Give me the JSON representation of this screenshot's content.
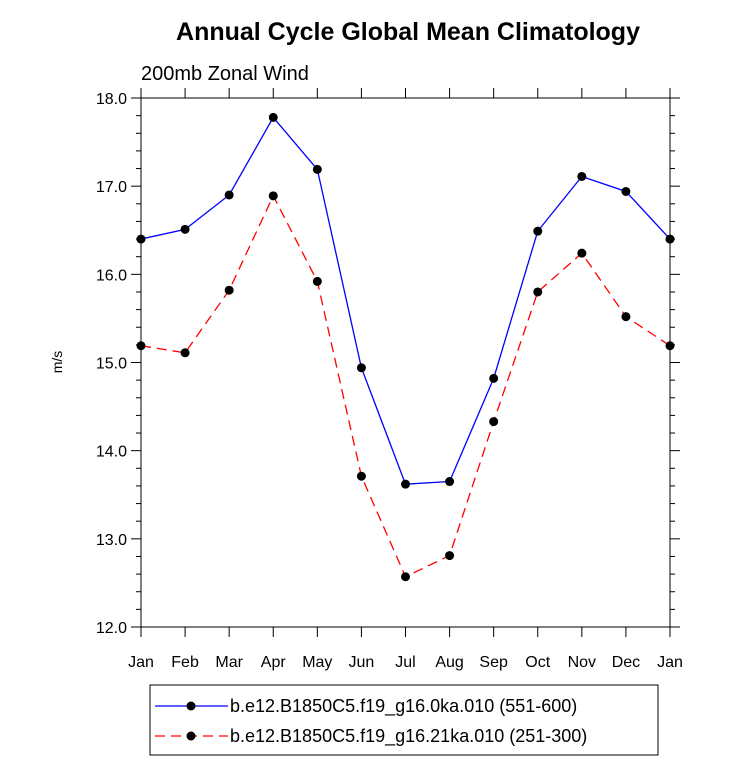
{
  "chart_data": {
    "type": "line",
    "title": "Annual Cycle Global Mean Climatology",
    "subtitle": "200mb Zonal Wind",
    "xlabel": "",
    "ylabel": "m/s",
    "categories": [
      "Jan",
      "Feb",
      "Mar",
      "Apr",
      "May",
      "Jun",
      "Jul",
      "Aug",
      "Sep",
      "Oct",
      "Nov",
      "Dec",
      "Jan"
    ],
    "ylim": [
      12.0,
      18.0
    ],
    "yticks": [
      "12.0",
      "13.0",
      "14.0",
      "15.0",
      "16.0",
      "17.0",
      "18.0"
    ],
    "series": [
      {
        "name": "b.e12.B1850C5.f19_g16.0ka.010 (551-600)",
        "color": "#0000ff",
        "dash": "solid",
        "values": [
          16.4,
          16.51,
          16.9,
          17.78,
          17.19,
          14.94,
          13.62,
          13.65,
          14.82,
          16.49,
          17.11,
          16.94,
          16.4
        ]
      },
      {
        "name": "b.e12.B1850C5.f19_g16.21ka.010 (251-300)",
        "color": "#ff0000",
        "dash": "dashed",
        "values": [
          15.19,
          15.11,
          15.82,
          16.89,
          15.92,
          13.71,
          12.57,
          12.81,
          14.33,
          15.8,
          16.24,
          15.52,
          15.19
        ]
      }
    ],
    "grid": false,
    "legend_position": "bottom"
  }
}
